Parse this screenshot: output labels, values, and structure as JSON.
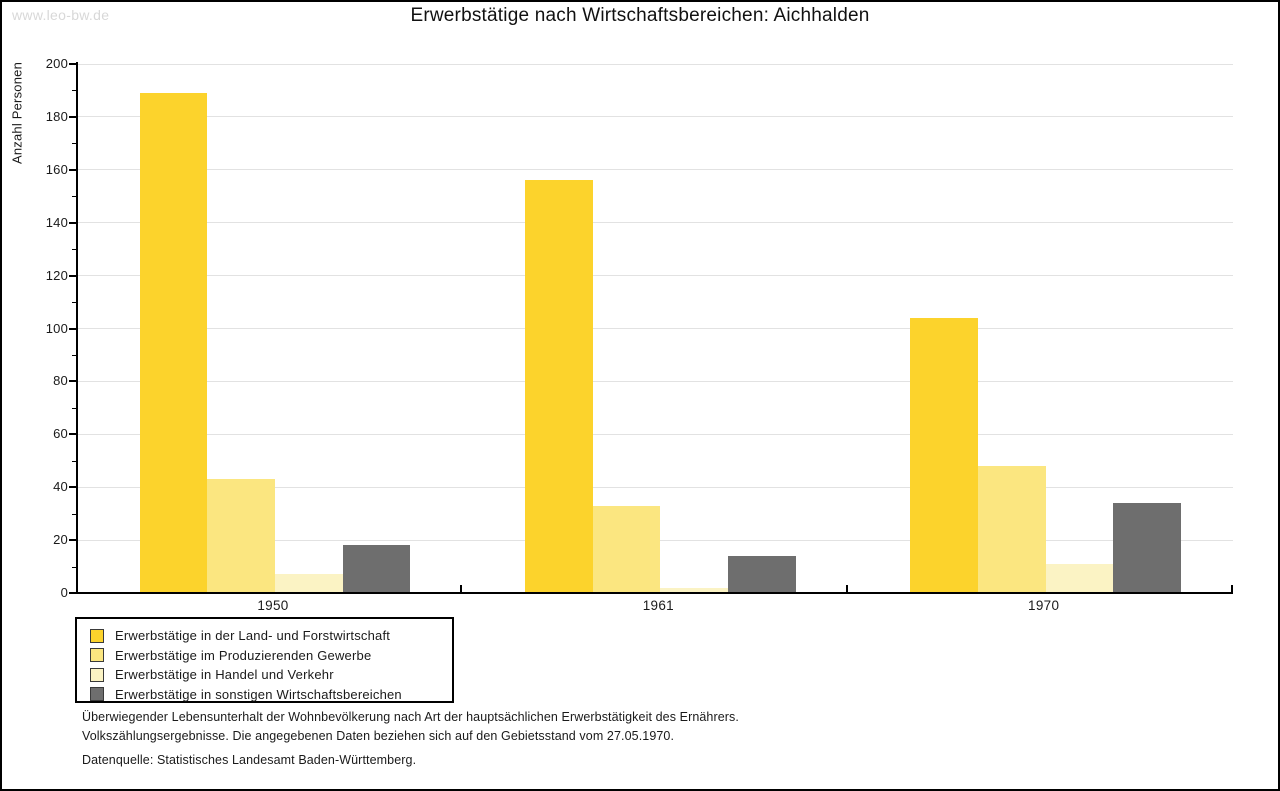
{
  "watermark": "www.leo-bw.de",
  "chart_data": {
    "type": "bar",
    "title": "Erwerbstätige nach Wirtschaftsbereichen: Aichhalden",
    "ylabel": "Anzahl Personen",
    "xlabel": "",
    "categories": [
      "1950",
      "1961",
      "1970"
    ],
    "series": [
      {
        "name": "Erwerbstätige in der Land- und Forstwirtschaft",
        "color": "#fcd32c",
        "values": [
          189,
          156,
          104
        ]
      },
      {
        "name": "Erwerbstätige im Produzierenden Gewerbe",
        "color": "#fbe680",
        "values": [
          43,
          33,
          48
        ]
      },
      {
        "name": "Erwerbstätige in Handel und Verkehr",
        "color": "#fbf3c4",
        "values": [
          7,
          2,
          11
        ]
      },
      {
        "name": "Erwerbstätige in sonstigen Wirtschaftsbereichen",
        "color": "#6e6e6e",
        "values": [
          18,
          14,
          34
        ]
      }
    ],
    "ylim": [
      0,
      200
    ],
    "ytick_step": 20,
    "ytick_minor_step": 10,
    "grid": "horizontal",
    "gridline_color": "#e2e2e2",
    "axis_color": "#000000",
    "legend_position": "bottom-left"
  },
  "footnotes": {
    "line1": "Überwiegender Lebensunterhalt der Wohnbevölkerung nach Art der hauptsächlichen Erwerbstätigkeit des Ernährers.",
    "line2": "Volkszählungsergebnisse. Die angegebenen Daten beziehen sich auf den Gebietsstand vom 27.05.1970.",
    "source": "Datenquelle: Statistisches Landesamt Baden-Württemberg."
  }
}
